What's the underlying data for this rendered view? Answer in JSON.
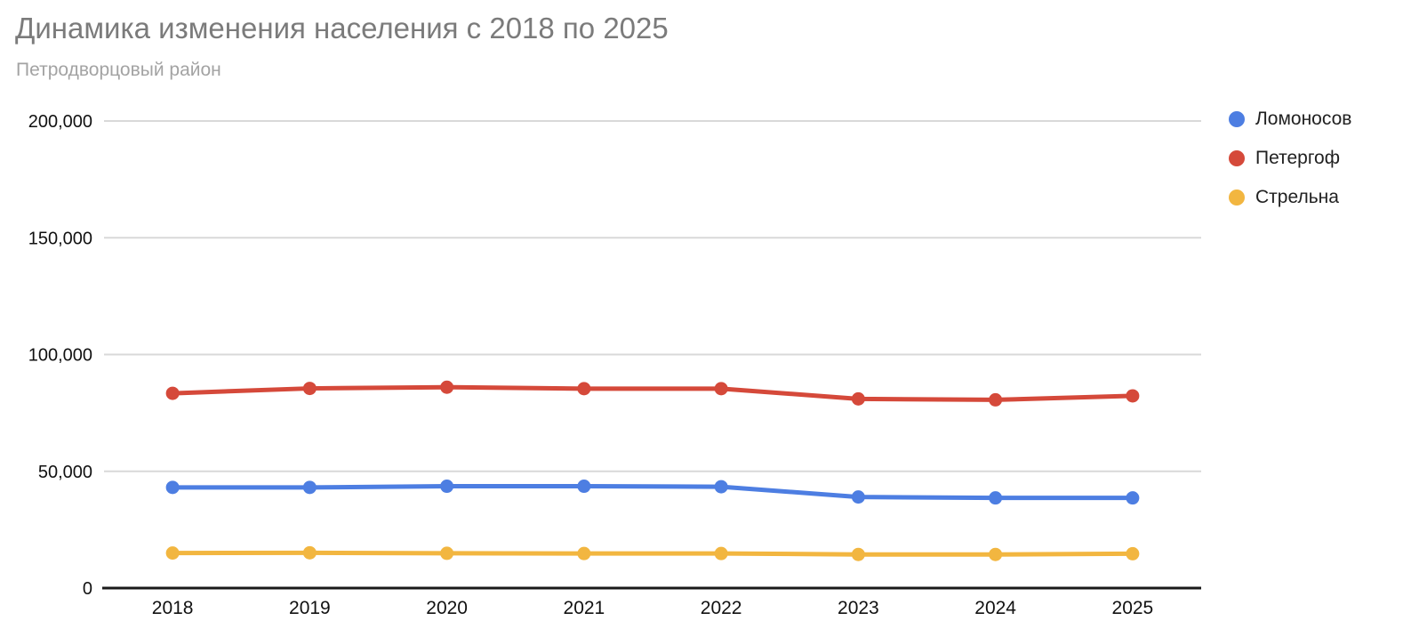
{
  "header": {
    "title": "Динамика изменения населения с 2018 по 2025",
    "subtitle": "Петродворцовый район"
  },
  "legend": {
    "position": "right",
    "items": [
      {
        "label": "Ломоносов",
        "color": "#4d7ee2"
      },
      {
        "label": "Петергоф",
        "color": "#d5493a"
      },
      {
        "label": "Стрельна",
        "color": "#f2b640"
      }
    ]
  },
  "colors": {
    "title_text": "#7b7b7b",
    "subtitle_text": "#a3a3a3",
    "tick_text": "#111111",
    "legend_text": "#212121",
    "grid": "#d9d9d9",
    "axis": "#1a1a1a",
    "background": "#ffffff"
  },
  "chart_data": {
    "type": "line",
    "title": "Динамика изменения населения с 2018 по 2025",
    "subtitle": "Петродворцовый район",
    "x": [
      "2018",
      "2019",
      "2020",
      "2021",
      "2022",
      "2023",
      "2024",
      "2025"
    ],
    "series": [
      {
        "name": "Ломоносов",
        "color": "#4d7ee2",
        "values": [
          43100,
          43100,
          43600,
          43600,
          43400,
          39000,
          38600,
          38600
        ]
      },
      {
        "name": "Петергоф",
        "color": "#d5493a",
        "values": [
          83400,
          85500,
          86000,
          85400,
          85400,
          81000,
          80600,
          82300
        ]
      },
      {
        "name": "Стрельна",
        "color": "#f2b640",
        "values": [
          15000,
          15100,
          14900,
          14800,
          14800,
          14400,
          14400,
          14700
        ]
      }
    ],
    "xlabel": "",
    "ylabel": "",
    "ylim": [
      0,
      200000
    ],
    "y_ticks": [
      0,
      50000,
      100000,
      150000,
      200000
    ],
    "y_tick_format": "thousands-comma",
    "grid": "horizontal",
    "markers": true,
    "legend_position": "right"
  }
}
